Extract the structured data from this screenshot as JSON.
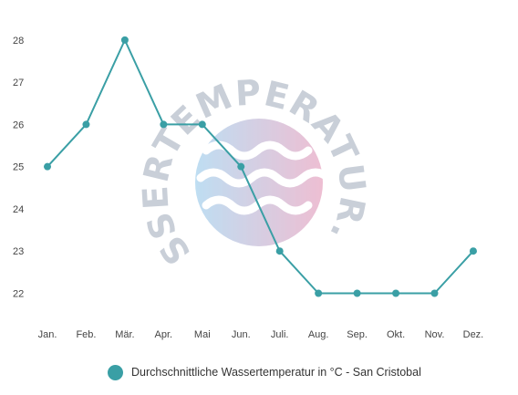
{
  "chart_data": {
    "type": "line",
    "categories": [
      "Jan.",
      "Feb.",
      "Mär.",
      "Apr.",
      "Mai",
      "Jun.",
      "Juli.",
      "Aug.",
      "Sep.",
      "Okt.",
      "Nov.",
      "Dez."
    ],
    "series": [
      {
        "name": "Durchschnittliche Wassertemperatur in °C - San Cristobal",
        "values": [
          25,
          26,
          28,
          26,
          26,
          25,
          23,
          22,
          22,
          22,
          22,
          23
        ],
        "color": "#3a9fa5"
      }
    ],
    "yticks": [
      22,
      23,
      24,
      25,
      26,
      27,
      28
    ],
    "ylim": [
      21.6,
      28.3
    ],
    "grid": false,
    "legend": "bottom"
  },
  "watermark": {
    "text": "WASSERTEMPERATUR.ORG",
    "colors": [
      "#a9d3ee",
      "#e8a9c4"
    ]
  }
}
